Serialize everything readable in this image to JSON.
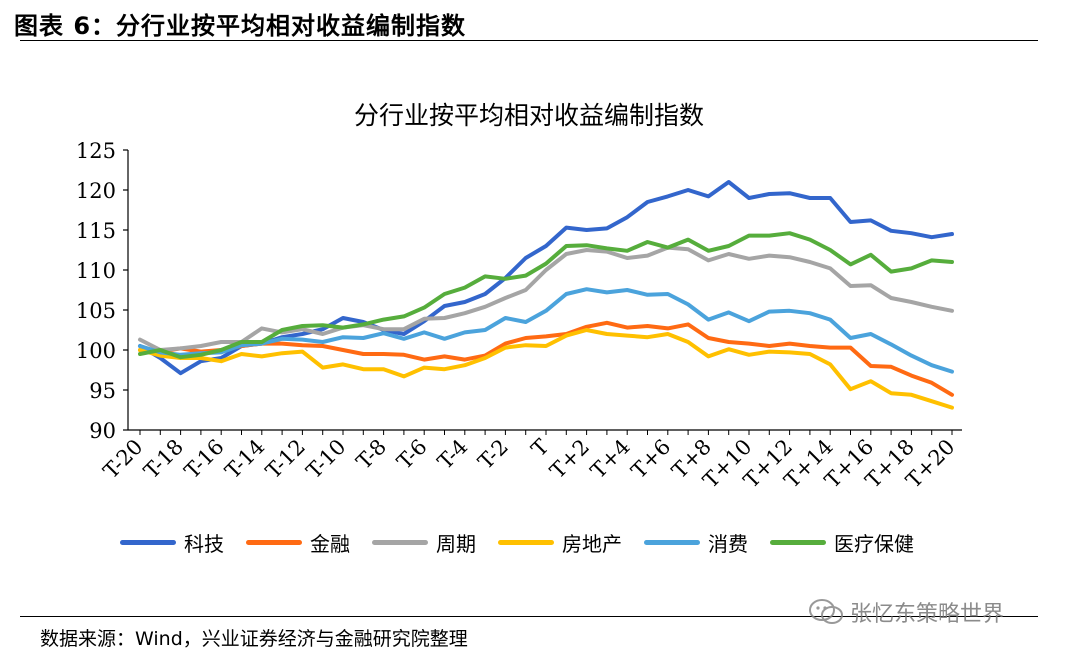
{
  "header": {
    "title": "图表 6：分行业按平均相对收益编制指数"
  },
  "footer": {
    "source": "数据来源：Wind，兴业证券经济与金融研究院整理"
  },
  "watermark": {
    "text": "张忆东策略世界",
    "icon": "wechat-icon"
  },
  "chart_data": {
    "type": "line",
    "title": "分行业按平均相对收益编制指数",
    "xlabel": "",
    "ylabel": "",
    "ylim": [
      90,
      125
    ],
    "yticks": [
      90,
      95,
      100,
      105,
      110,
      115,
      120,
      125
    ],
    "grid": false,
    "legend_position": "bottom",
    "categories": [
      "T-20",
      "T-19",
      "T-18",
      "T-17",
      "T-16",
      "T-15",
      "T-14",
      "T-13",
      "T-12",
      "T-11",
      "T-10",
      "T-9",
      "T-8",
      "T-7",
      "T-6",
      "T-5",
      "T-4",
      "T-3",
      "T-2",
      "T-1",
      "T",
      "T+1",
      "T+2",
      "T+3",
      "T+4",
      "T+5",
      "T+6",
      "T+7",
      "T+8",
      "T+9",
      "T+10",
      "T+11",
      "T+12",
      "T+13",
      "T+14",
      "T+15",
      "T+16",
      "T+17",
      "T+18",
      "T+19",
      "T+20"
    ],
    "tick_labels": [
      "T-20",
      "T-18",
      "T-16",
      "T-14",
      "T-12",
      "T-10",
      "T-8",
      "T-6",
      "T-4",
      "T-2",
      "T",
      "T+2",
      "T+4",
      "T+6",
      "T+8",
      "T+10",
      "T+12",
      "T+14",
      "T+16",
      "T+18",
      "T+20"
    ],
    "series": [
      {
        "name": "科技",
        "color": "#3366cc",
        "values": [
          100.5,
          99.0,
          97.1,
          98.6,
          99.0,
          100.5,
          100.8,
          101.6,
          102.0,
          102.6,
          104.0,
          103.5,
          102.5,
          102.0,
          103.6,
          105.5,
          106.0,
          107.0,
          109.0,
          111.5,
          113.0,
          115.3,
          115.0,
          115.2,
          116.6,
          118.5,
          119.2,
          120.0,
          119.2,
          121.0,
          119.0,
          119.5,
          119.6,
          119.0,
          119.0,
          116.0,
          116.2,
          114.9,
          114.6,
          114.1,
          114.5
        ]
      },
      {
        "name": "金融",
        "color": "#ff6a13",
        "values": [
          100.0,
          99.8,
          100.2,
          99.8,
          100.0,
          100.5,
          100.8,
          100.8,
          100.6,
          100.5,
          100.0,
          99.5,
          99.5,
          99.4,
          98.8,
          99.2,
          98.8,
          99.3,
          100.8,
          101.5,
          101.7,
          102.0,
          102.9,
          103.4,
          102.8,
          103.0,
          102.7,
          103.2,
          101.5,
          101.0,
          100.8,
          100.5,
          100.8,
          100.5,
          100.3,
          100.3,
          98.0,
          97.9,
          96.8,
          95.9,
          94.4
        ]
      },
      {
        "name": "周期",
        "color": "#a5a5a5",
        "values": [
          101.3,
          100.0,
          100.2,
          100.5,
          101.0,
          101.0,
          102.7,
          102.2,
          102.6,
          102.0,
          102.8,
          103.1,
          102.6,
          102.6,
          103.9,
          104.0,
          104.6,
          105.4,
          106.5,
          107.5,
          110.0,
          112.0,
          112.5,
          112.3,
          111.5,
          111.8,
          112.8,
          112.6,
          111.2,
          112.0,
          111.4,
          111.8,
          111.6,
          111.0,
          110.2,
          108.0,
          108.1,
          106.5,
          106.0,
          105.4,
          104.9
        ]
      },
      {
        "name": "房地产",
        "color": "#ffc000",
        "values": [
          100.0,
          99.3,
          99.0,
          99.0,
          98.6,
          99.5,
          99.2,
          99.6,
          99.8,
          97.8,
          98.2,
          97.6,
          97.6,
          96.7,
          97.8,
          97.6,
          98.1,
          99.0,
          100.3,
          100.6,
          100.5,
          101.8,
          102.5,
          102.0,
          101.8,
          101.6,
          102.0,
          101.0,
          99.2,
          100.1,
          99.4,
          99.8,
          99.7,
          99.5,
          98.2,
          95.1,
          96.1,
          94.6,
          94.4,
          93.6,
          92.8
        ]
      },
      {
        "name": "消费",
        "color": "#4ba3dc",
        "values": [
          100.5,
          99.7,
          99.4,
          99.6,
          99.7,
          100.6,
          100.8,
          101.4,
          101.3,
          101.0,
          101.6,
          101.5,
          102.1,
          101.4,
          102.2,
          101.4,
          102.2,
          102.5,
          104.0,
          103.5,
          104.9,
          107.0,
          107.6,
          107.2,
          107.5,
          106.9,
          107.0,
          105.7,
          103.8,
          104.7,
          103.6,
          104.8,
          104.9,
          104.6,
          103.8,
          101.5,
          102.0,
          100.7,
          99.3,
          98.1,
          97.3
        ]
      },
      {
        "name": "医疗保健",
        "color": "#56ad3c",
        "values": [
          99.5,
          100.0,
          99.1,
          99.4,
          100.0,
          101.0,
          101.0,
          102.5,
          103.0,
          103.1,
          102.8,
          103.2,
          103.8,
          104.2,
          105.3,
          107.0,
          107.8,
          109.2,
          108.9,
          109.3,
          110.8,
          113.0,
          113.1,
          112.7,
          112.4,
          113.5,
          112.8,
          113.8,
          112.4,
          113.0,
          114.3,
          114.3,
          114.6,
          113.8,
          112.5,
          110.7,
          111.9,
          109.8,
          110.2,
          111.2,
          111.0
        ]
      }
    ]
  }
}
